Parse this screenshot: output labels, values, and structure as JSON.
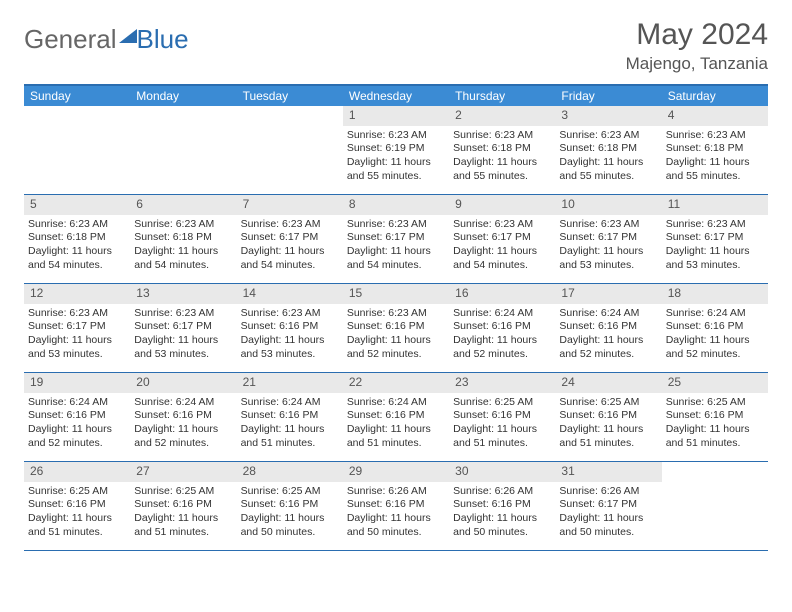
{
  "logo": {
    "part1": "General",
    "part2": "Blue"
  },
  "header": {
    "title": "May 2024",
    "location": "Majengo, Tanzania"
  },
  "colors": {
    "accent": "#2a6db0",
    "header_bg": "#3b8bd4",
    "daynum_bg": "#e9e9e9",
    "text": "#333333",
    "muted": "#555555"
  },
  "weekdays": [
    "Sunday",
    "Monday",
    "Tuesday",
    "Wednesday",
    "Thursday",
    "Friday",
    "Saturday"
  ],
  "weeks": [
    [
      null,
      null,
      null,
      {
        "n": "1",
        "sr": "6:23 AM",
        "ss": "6:19 PM",
        "dl": "11 hours and 55 minutes."
      },
      {
        "n": "2",
        "sr": "6:23 AM",
        "ss": "6:18 PM",
        "dl": "11 hours and 55 minutes."
      },
      {
        "n": "3",
        "sr": "6:23 AM",
        "ss": "6:18 PM",
        "dl": "11 hours and 55 minutes."
      },
      {
        "n": "4",
        "sr": "6:23 AM",
        "ss": "6:18 PM",
        "dl": "11 hours and 55 minutes."
      }
    ],
    [
      {
        "n": "5",
        "sr": "6:23 AM",
        "ss": "6:18 PM",
        "dl": "11 hours and 54 minutes."
      },
      {
        "n": "6",
        "sr": "6:23 AM",
        "ss": "6:18 PM",
        "dl": "11 hours and 54 minutes."
      },
      {
        "n": "7",
        "sr": "6:23 AM",
        "ss": "6:17 PM",
        "dl": "11 hours and 54 minutes."
      },
      {
        "n": "8",
        "sr": "6:23 AM",
        "ss": "6:17 PM",
        "dl": "11 hours and 54 minutes."
      },
      {
        "n": "9",
        "sr": "6:23 AM",
        "ss": "6:17 PM",
        "dl": "11 hours and 54 minutes."
      },
      {
        "n": "10",
        "sr": "6:23 AM",
        "ss": "6:17 PM",
        "dl": "11 hours and 53 minutes."
      },
      {
        "n": "11",
        "sr": "6:23 AM",
        "ss": "6:17 PM",
        "dl": "11 hours and 53 minutes."
      }
    ],
    [
      {
        "n": "12",
        "sr": "6:23 AM",
        "ss": "6:17 PM",
        "dl": "11 hours and 53 minutes."
      },
      {
        "n": "13",
        "sr": "6:23 AM",
        "ss": "6:17 PM",
        "dl": "11 hours and 53 minutes."
      },
      {
        "n": "14",
        "sr": "6:23 AM",
        "ss": "6:16 PM",
        "dl": "11 hours and 53 minutes."
      },
      {
        "n": "15",
        "sr": "6:23 AM",
        "ss": "6:16 PM",
        "dl": "11 hours and 52 minutes."
      },
      {
        "n": "16",
        "sr": "6:24 AM",
        "ss": "6:16 PM",
        "dl": "11 hours and 52 minutes."
      },
      {
        "n": "17",
        "sr": "6:24 AM",
        "ss": "6:16 PM",
        "dl": "11 hours and 52 minutes."
      },
      {
        "n": "18",
        "sr": "6:24 AM",
        "ss": "6:16 PM",
        "dl": "11 hours and 52 minutes."
      }
    ],
    [
      {
        "n": "19",
        "sr": "6:24 AM",
        "ss": "6:16 PM",
        "dl": "11 hours and 52 minutes."
      },
      {
        "n": "20",
        "sr": "6:24 AM",
        "ss": "6:16 PM",
        "dl": "11 hours and 52 minutes."
      },
      {
        "n": "21",
        "sr": "6:24 AM",
        "ss": "6:16 PM",
        "dl": "11 hours and 51 minutes."
      },
      {
        "n": "22",
        "sr": "6:24 AM",
        "ss": "6:16 PM",
        "dl": "11 hours and 51 minutes."
      },
      {
        "n": "23",
        "sr": "6:25 AM",
        "ss": "6:16 PM",
        "dl": "11 hours and 51 minutes."
      },
      {
        "n": "24",
        "sr": "6:25 AM",
        "ss": "6:16 PM",
        "dl": "11 hours and 51 minutes."
      },
      {
        "n": "25",
        "sr": "6:25 AM",
        "ss": "6:16 PM",
        "dl": "11 hours and 51 minutes."
      }
    ],
    [
      {
        "n": "26",
        "sr": "6:25 AM",
        "ss": "6:16 PM",
        "dl": "11 hours and 51 minutes."
      },
      {
        "n": "27",
        "sr": "6:25 AM",
        "ss": "6:16 PM",
        "dl": "11 hours and 51 minutes."
      },
      {
        "n": "28",
        "sr": "6:25 AM",
        "ss": "6:16 PM",
        "dl": "11 hours and 50 minutes."
      },
      {
        "n": "29",
        "sr": "6:26 AM",
        "ss": "6:16 PM",
        "dl": "11 hours and 50 minutes."
      },
      {
        "n": "30",
        "sr": "6:26 AM",
        "ss": "6:16 PM",
        "dl": "11 hours and 50 minutes."
      },
      {
        "n": "31",
        "sr": "6:26 AM",
        "ss": "6:17 PM",
        "dl": "11 hours and 50 minutes."
      },
      null
    ]
  ],
  "labels": {
    "sunrise": "Sunrise:",
    "sunset": "Sunset:",
    "daylight": "Daylight:"
  }
}
